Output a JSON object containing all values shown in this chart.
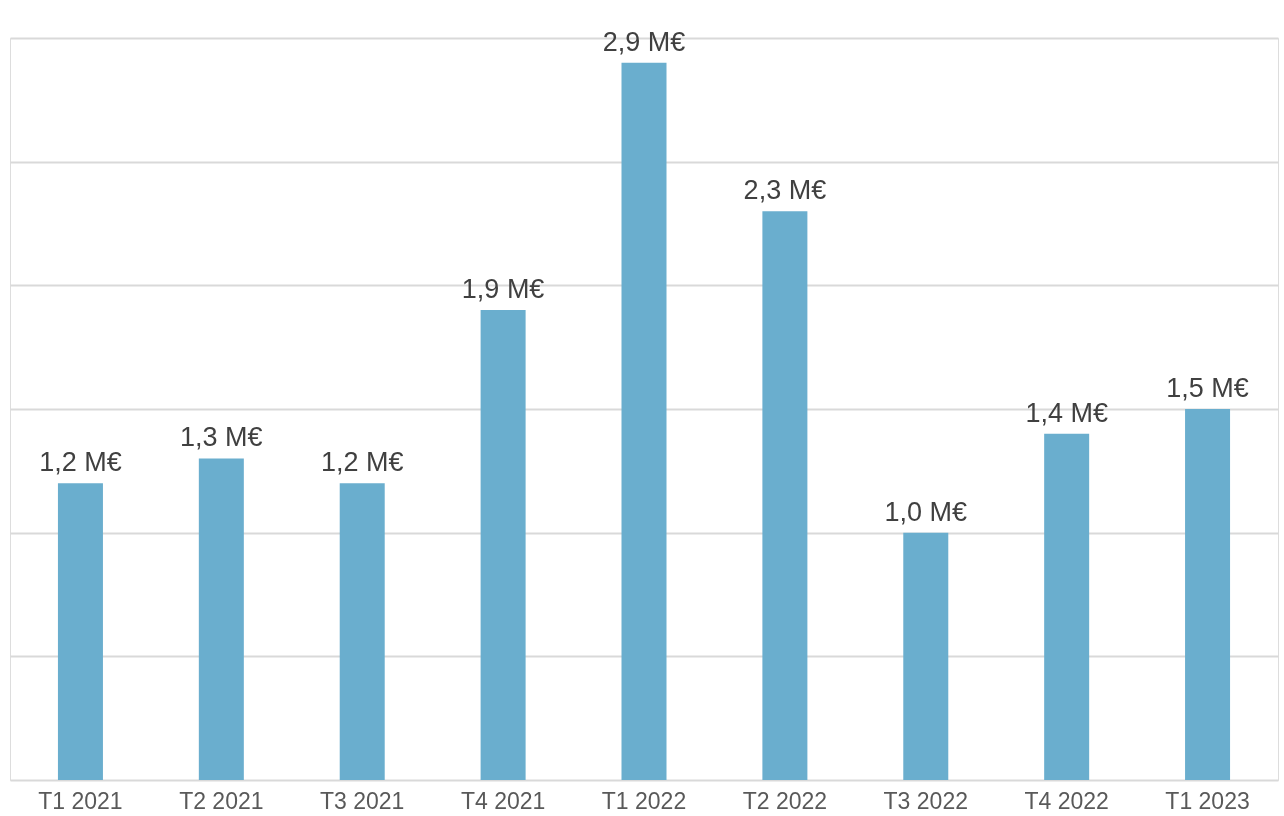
{
  "chart_data": {
    "type": "bar",
    "categories": [
      "T1 2021",
      "T2 2021",
      "T3 2021",
      "T4 2021",
      "T1 2022",
      "T2 2022",
      "T3 2022",
      "T4 2022",
      "T1 2023"
    ],
    "values": [
      1.2,
      1.3,
      1.2,
      1.9,
      2.9,
      2.3,
      1.0,
      1.4,
      1.5
    ],
    "value_labels": [
      "1,2 M€",
      "1,3 M€",
      "1,2 M€",
      "1,9 M€",
      "2,9 M€",
      "2,3 M€",
      "1,0 M€",
      "1,4 M€",
      "1,5 M€"
    ],
    "color": "#6aaece",
    "ylim": [
      0,
      3
    ],
    "yticks": [
      {
        "value": 0,
        "label": null
      },
      {
        "value": 0.5,
        "label": null
      },
      {
        "value": 1,
        "label": null
      },
      {
        "value": 1.5,
        "label": null
      },
      {
        "value": 2,
        "label": null
      },
      {
        "value": 2.5,
        "label": null
      },
      {
        "value": 3,
        "label": null
      }
    ],
    "grid": "y",
    "tick_labels": "x"
  }
}
